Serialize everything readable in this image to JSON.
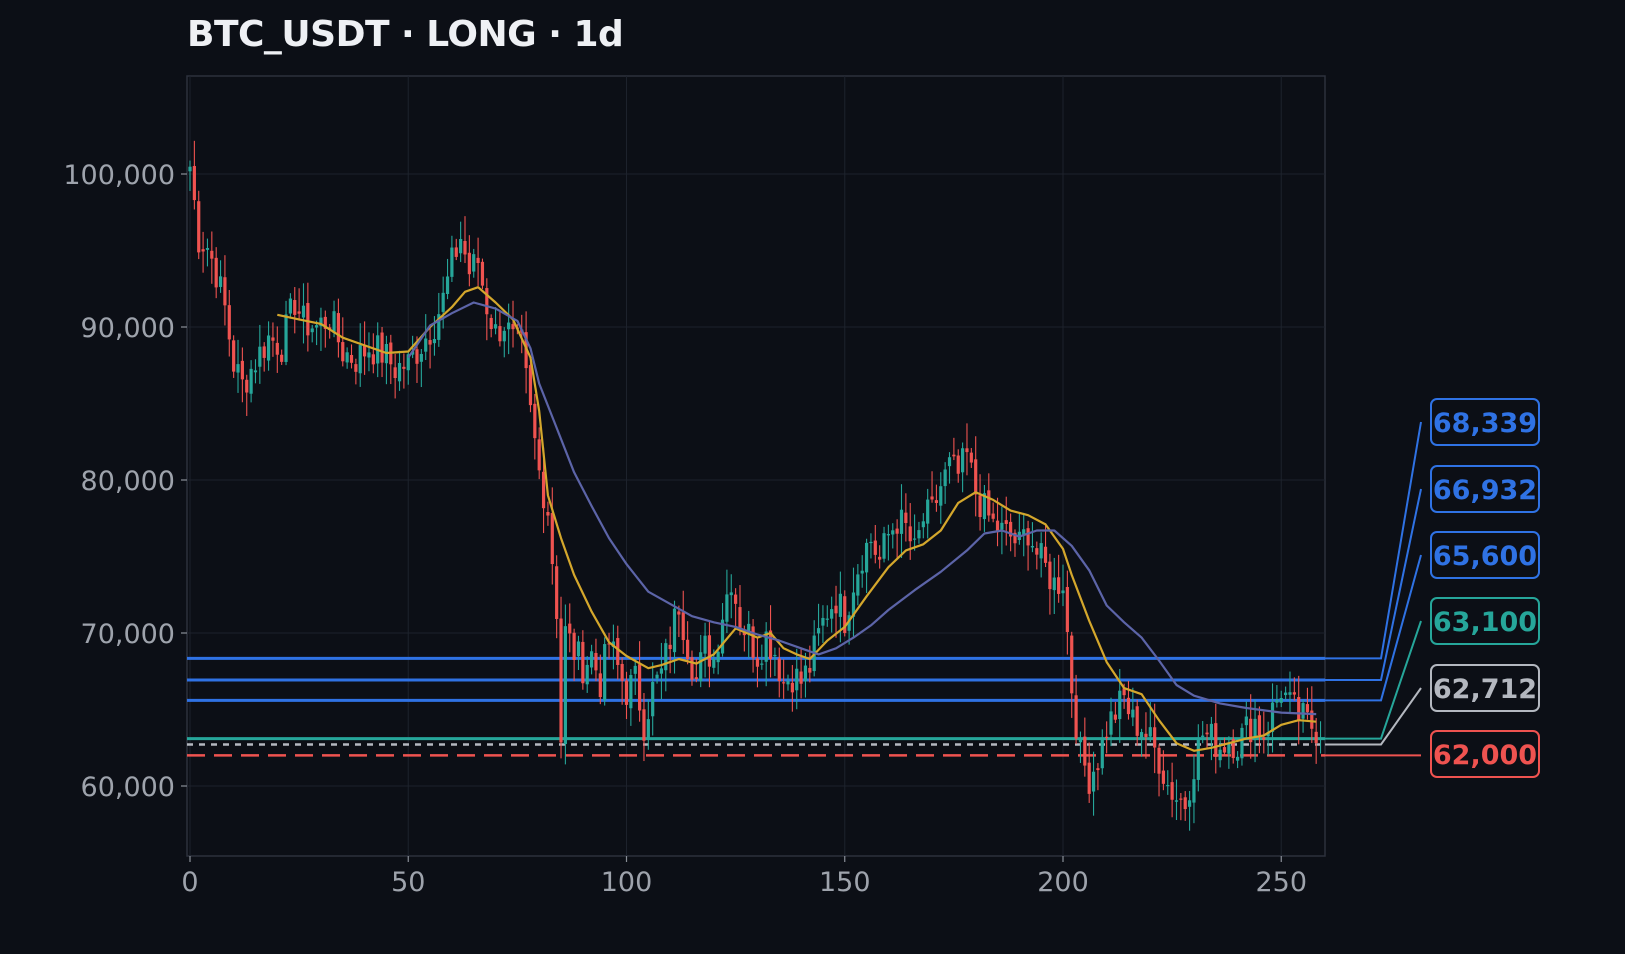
{
  "chart_data": {
    "type": "candlestick",
    "title": "BTC_USDT · LONG · 1d",
    "xlabel": "",
    "ylabel": "",
    "xlim": [
      -1,
      259
    ],
    "ylim": [
      55000,
      106500
    ],
    "x_ticks": [
      0,
      50,
      100,
      150,
      200,
      250
    ],
    "y_ticks": [
      60000,
      70000,
      80000,
      90000,
      100000
    ],
    "grid": true,
    "candle_colors": {
      "up": "#26a69a",
      "down": "#ef5350"
    },
    "ma_lines": [
      {
        "color": "#d4a72c",
        "points": [
          [
            20,
            90800
          ],
          [
            25,
            90500
          ],
          [
            30,
            90200
          ],
          [
            35,
            89300
          ],
          [
            40,
            88800
          ],
          [
            45,
            88300
          ],
          [
            50,
            88400
          ],
          [
            55,
            90000
          ],
          [
            60,
            91300
          ],
          [
            63,
            92300
          ],
          [
            66,
            92600
          ],
          [
            70,
            91600
          ],
          [
            74,
            90500
          ],
          [
            78,
            88000
          ],
          [
            80,
            84500
          ],
          [
            82,
            79000
          ],
          [
            85,
            76200
          ],
          [
            88,
            73800
          ],
          [
            92,
            71400
          ],
          [
            96,
            69400
          ],
          [
            100,
            68500
          ],
          [
            105,
            67700
          ],
          [
            108,
            67900
          ],
          [
            112,
            68300
          ],
          [
            116,
            68000
          ],
          [
            120,
            68600
          ],
          [
            125,
            70300
          ],
          [
            130,
            69700
          ],
          [
            133,
            70000
          ],
          [
            136,
            69000
          ],
          [
            139,
            68600
          ],
          [
            142,
            68300
          ],
          [
            146,
            69500
          ],
          [
            150,
            70400
          ],
          [
            155,
            72400
          ],
          [
            160,
            74300
          ],
          [
            164,
            75400
          ],
          [
            168,
            75800
          ],
          [
            172,
            76700
          ],
          [
            176,
            78500
          ],
          [
            180,
            79200
          ],
          [
            184,
            78700
          ],
          [
            188,
            78000
          ],
          [
            192,
            77700
          ],
          [
            196,
            77100
          ],
          [
            200,
            75500
          ],
          [
            202,
            73800
          ],
          [
            206,
            70800
          ],
          [
            210,
            68100
          ],
          [
            214,
            66400
          ],
          [
            218,
            66000
          ],
          [
            222,
            64300
          ],
          [
            226,
            62800
          ],
          [
            230,
            62300
          ],
          [
            234,
            62500
          ],
          [
            238,
            62800
          ],
          [
            242,
            63100
          ],
          [
            246,
            63300
          ],
          [
            250,
            64000
          ],
          [
            254,
            64300
          ],
          [
            258,
            64200
          ]
        ]
      },
      {
        "color": "#5c64a8",
        "points": [
          [
            50,
            88000
          ],
          [
            55,
            90100
          ],
          [
            60,
            90900
          ],
          [
            65,
            91600
          ],
          [
            70,
            91200
          ],
          [
            75,
            90400
          ],
          [
            78,
            88600
          ],
          [
            80,
            86300
          ],
          [
            84,
            83400
          ],
          [
            88,
            80500
          ],
          [
            92,
            78300
          ],
          [
            96,
            76200
          ],
          [
            100,
            74500
          ],
          [
            105,
            72700
          ],
          [
            110,
            71900
          ],
          [
            115,
            71100
          ],
          [
            120,
            70700
          ],
          [
            125,
            70400
          ],
          [
            130,
            69900
          ],
          [
            135,
            69500
          ],
          [
            140,
            69000
          ],
          [
            144,
            68600
          ],
          [
            148,
            69000
          ],
          [
            152,
            69700
          ],
          [
            156,
            70500
          ],
          [
            160,
            71500
          ],
          [
            166,
            72800
          ],
          [
            172,
            74000
          ],
          [
            178,
            75400
          ],
          [
            182,
            76500
          ],
          [
            186,
            76700
          ],
          [
            190,
            76300
          ],
          [
            194,
            76700
          ],
          [
            198,
            76700
          ],
          [
            202,
            75700
          ],
          [
            206,
            74100
          ],
          [
            210,
            71800
          ],
          [
            214,
            70700
          ],
          [
            218,
            69700
          ],
          [
            222,
            68200
          ],
          [
            226,
            66600
          ],
          [
            230,
            65900
          ],
          [
            236,
            65400
          ],
          [
            242,
            65100
          ],
          [
            250,
            64800
          ],
          [
            258,
            64700
          ]
        ]
      }
    ],
    "levels": [
      {
        "value": 68339,
        "label": "68,339",
        "color": "#2f72e4",
        "style": "solid"
      },
      {
        "value": 66932,
        "label": "66,932",
        "color": "#2f72e4",
        "style": "solid"
      },
      {
        "value": 65600,
        "label": "65,600",
        "color": "#2f72e4",
        "style": "solid"
      },
      {
        "value": 63100,
        "label": "63,100",
        "color": "#26a69a",
        "style": "solid"
      },
      {
        "value": 62712,
        "label": "62,712",
        "color": "#b4b8c0",
        "style": "dotted"
      },
      {
        "value": 62000,
        "label": "62,000",
        "color": "#ef5350",
        "style": "dashed"
      }
    ],
    "anchor_points": [
      [
        0,
        100500
      ],
      [
        2,
        95800
      ],
      [
        4,
        95300
      ],
      [
        6,
        93600
      ],
      [
        8,
        91200
      ],
      [
        10,
        87600
      ],
      [
        12,
        86200
      ],
      [
        15,
        87800
      ],
      [
        18,
        89300
      ],
      [
        21,
        88800
      ],
      [
        24,
        91700
      ],
      [
        26,
        90300
      ],
      [
        29,
        90000
      ],
      [
        32,
        90600
      ],
      [
        35,
        88400
      ],
      [
        38,
        87900
      ],
      [
        41,
        88700
      ],
      [
        44,
        88300
      ],
      [
        47,
        87300
      ],
      [
        50,
        87600
      ],
      [
        53,
        88900
      ],
      [
        56,
        90300
      ],
      [
        58,
        91800
      ],
      [
        60,
        94100
      ],
      [
        62,
        95900
      ],
      [
        64,
        93600
      ],
      [
        66,
        94300
      ],
      [
        68,
        91400
      ],
      [
        70,
        89600
      ],
      [
        72,
        90300
      ],
      [
        74,
        89000
      ],
      [
        76,
        88600
      ],
      [
        78,
        84300
      ],
      [
        80,
        80500
      ],
      [
        82,
        78100
      ],
      [
        84,
        71600
      ],
      [
        85,
        63100
      ],
      [
        86,
        70000
      ],
      [
        88,
        68800
      ],
      [
        90,
        67900
      ],
      [
        92,
        68600
      ],
      [
        94,
        66800
      ],
      [
        96,
        69400
      ],
      [
        98,
        67700
      ],
      [
        100,
        66200
      ],
      [
        102,
        66900
      ],
      [
        104,
        64100
      ],
      [
        106,
        66300
      ],
      [
        108,
        67300
      ],
      [
        110,
        69600
      ],
      [
        112,
        72000
      ],
      [
        114,
        69300
      ],
      [
        116,
        66900
      ],
      [
        118,
        69000
      ],
      [
        120,
        68300
      ],
      [
        122,
        71400
      ],
      [
        124,
        73700
      ],
      [
        126,
        70800
      ],
      [
        128,
        69900
      ],
      [
        130,
        68600
      ],
      [
        132,
        69800
      ],
      [
        134,
        68800
      ],
      [
        136,
        66800
      ],
      [
        138,
        67300
      ],
      [
        140,
        66800
      ],
      [
        142,
        67800
      ],
      [
        144,
        69800
      ],
      [
        146,
        71500
      ],
      [
        148,
        72300
      ],
      [
        150,
        71000
      ],
      [
        152,
        73400
      ],
      [
        154,
        75200
      ],
      [
        156,
        76100
      ],
      [
        158,
        74700
      ],
      [
        160,
        76400
      ],
      [
        162,
        77400
      ],
      [
        164,
        76800
      ],
      [
        166,
        75200
      ],
      [
        168,
        77400
      ],
      [
        170,
        77800
      ],
      [
        172,
        79600
      ],
      [
        174,
        80800
      ],
      [
        176,
        80300
      ],
      [
        178,
        81500
      ],
      [
        180,
        79200
      ],
      [
        182,
        78000
      ],
      [
        184,
        77100
      ],
      [
        186,
        76600
      ],
      [
        188,
        76300
      ],
      [
        190,
        75700
      ],
      [
        192,
        76800
      ],
      [
        194,
        75200
      ],
      [
        196,
        74200
      ],
      [
        198,
        73200
      ],
      [
        200,
        73500
      ],
      [
        202,
        66500
      ],
      [
        204,
        62000
      ],
      [
        206,
        60600
      ],
      [
        208,
        61800
      ],
      [
        210,
        63800
      ],
      [
        212,
        64800
      ],
      [
        214,
        65700
      ],
      [
        216,
        64200
      ],
      [
        218,
        63900
      ],
      [
        220,
        62900
      ],
      [
        222,
        61800
      ],
      [
        224,
        60100
      ],
      [
        226,
        59300
      ],
      [
        228,
        58900
      ],
      [
        230,
        61500
      ],
      [
        232,
        63400
      ],
      [
        234,
        63100
      ],
      [
        236,
        62600
      ],
      [
        238,
        63100
      ],
      [
        240,
        62800
      ],
      [
        242,
        63700
      ],
      [
        244,
        64300
      ],
      [
        246,
        63400
      ],
      [
        248,
        64900
      ],
      [
        250,
        66400
      ],
      [
        252,
        65200
      ],
      [
        254,
        64600
      ],
      [
        256,
        64100
      ],
      [
        258,
        63800
      ]
    ]
  }
}
